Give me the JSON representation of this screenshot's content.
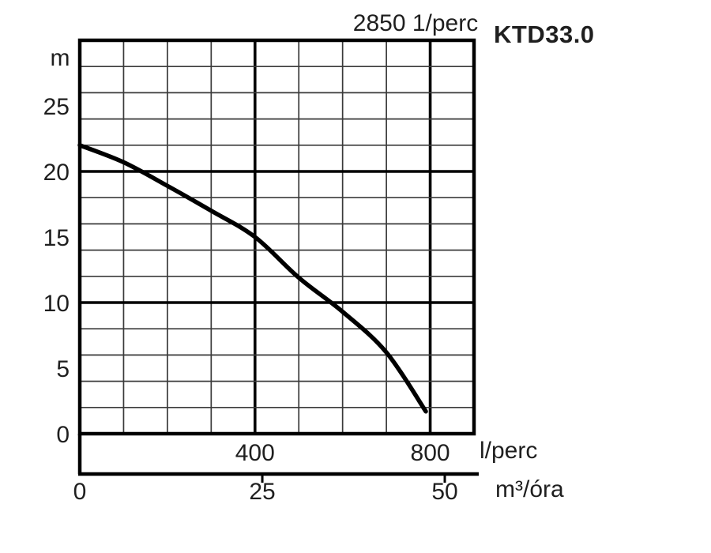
{
  "page": {
    "background": "#ffffff",
    "text_color": "#1f1f1f"
  },
  "chart_data": {
    "type": "line",
    "title": "2850 1/perc",
    "model_label": "KTD33.0",
    "x_axis": {
      "unit": "l/perc",
      "min": 0,
      "max": 900,
      "minor_step": 100,
      "bold_gridlines": [
        400,
        800
      ],
      "tick_labels": [
        400,
        800
      ]
    },
    "y_axis": {
      "unit": "m",
      "min": 0,
      "max": 30,
      "minor_step": 2,
      "bold_gridlines": [
        10,
        20
      ],
      "tick_labels": [
        0,
        5,
        10,
        15,
        20,
        25
      ]
    },
    "x2_axis": {
      "unit": "m³/óra",
      "ticks": [
        {
          "label": "0",
          "lperc": 0
        },
        {
          "label": "25",
          "lperc": 416.7
        },
        {
          "label": "50",
          "lperc": 833.3
        }
      ]
    },
    "series": [
      {
        "name": "head-curve",
        "color": "#000000",
        "points": [
          [
            0,
            22
          ],
          [
            100,
            20.7
          ],
          [
            200,
            18.9
          ],
          [
            300,
            17.0
          ],
          [
            400,
            15.0
          ],
          [
            500,
            11.9
          ],
          [
            600,
            9.3
          ],
          [
            700,
            6.2
          ],
          [
            790,
            1.7
          ]
        ]
      }
    ],
    "grid": {
      "thin_color": "#3a3a3a",
      "bold_color": "#000000",
      "grid_on": true
    }
  }
}
